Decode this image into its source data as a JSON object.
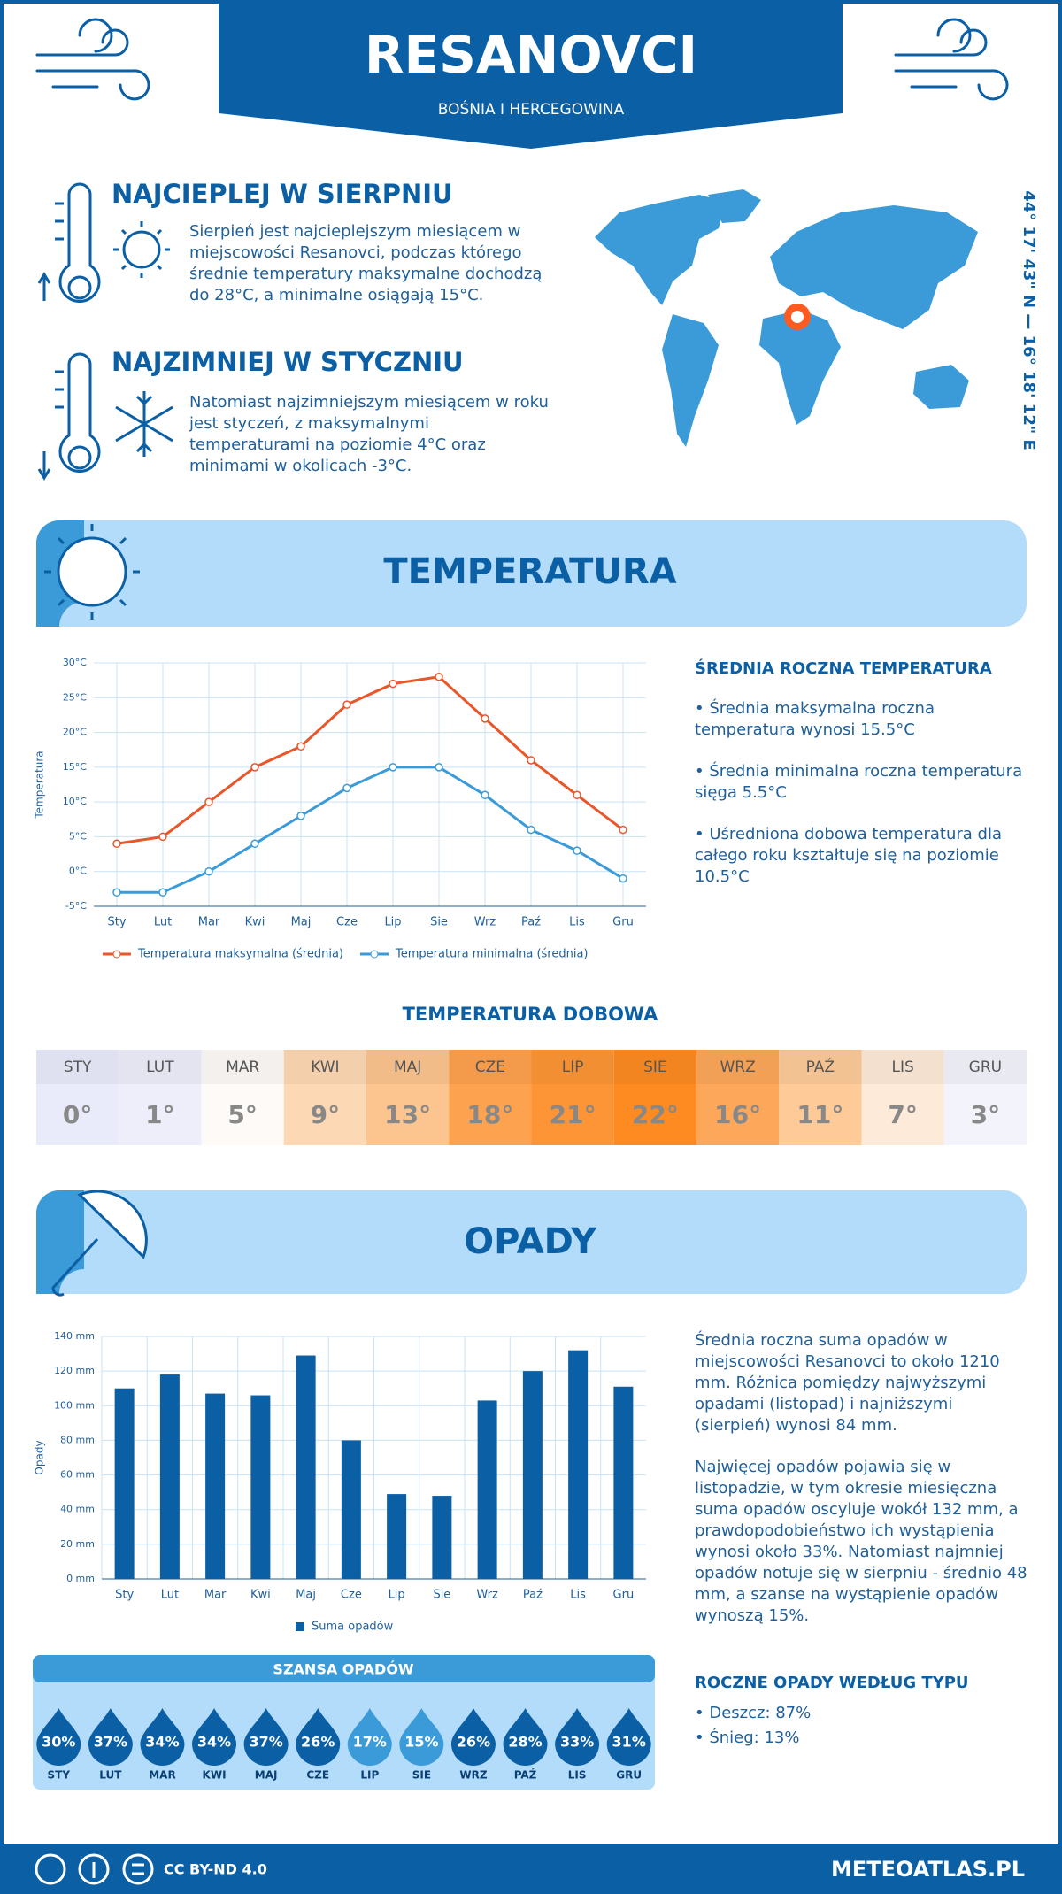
{
  "header": {
    "title": "RESANOVCI",
    "subtitle": "BOŚNIA I HERCEGOWINA"
  },
  "coordinates": "44° 17' 43\" N — 16° 18' 12\" E",
  "highlights": [
    {
      "title": "NAJCIEPLEJ W SIERPNIU",
      "text": "Sierpień jest najcieplejszym miesiącem w miejscowości Resanovci, podczas którego średnie temperatury maksymalne dochodzą do 28°C, a minimalne osiągają 15°C."
    },
    {
      "title": "NAJZIMNIEJ W STYCZNIU",
      "text": "Natomiast najzimniejszym miesiącem w roku jest styczeń, z maksymalnymi temperaturami na poziomie 4°C oraz minimami w okolicach -3°C."
    }
  ],
  "sections": {
    "temperature": "TEMPERATURA",
    "precipitation": "OPADY"
  },
  "chart_data": [
    {
      "type": "line",
      "y_label": "Temperatura",
      "categories": [
        "Sty",
        "Lut",
        "Mar",
        "Kwi",
        "Maj",
        "Cze",
        "Lip",
        "Sie",
        "Wrz",
        "Paź",
        "Lis",
        "Gru"
      ],
      "series": [
        {
          "name": "Temperatura maksymalna (średnia)",
          "color": "#e8562a",
          "values": [
            4,
            5,
            10,
            15,
            18,
            24,
            27,
            28,
            22,
            16,
            11,
            6
          ]
        },
        {
          "name": "Temperatura minimalna (średnia)",
          "color": "#3a9bd8",
          "values": [
            -3,
            -3,
            0,
            4,
            8,
            12,
            15,
            15,
            11,
            6,
            3,
            -1
          ]
        }
      ],
      "ylim": [
        -5,
        30
      ],
      "yticks": [
        {
          "value": -5,
          "label": "-5°C"
        },
        {
          "value": 0,
          "label": "0°C"
        },
        {
          "value": 5,
          "label": "5°C"
        },
        {
          "value": 10,
          "label": "10°C"
        },
        {
          "value": 15,
          "label": "15°C"
        },
        {
          "value": 20,
          "label": "20°C"
        },
        {
          "value": 25,
          "label": "25°C"
        },
        {
          "value": 30,
          "label": "30°C"
        }
      ],
      "grid": true
    },
    {
      "type": "bar",
      "y_label": "Opady",
      "categories": [
        "Sty",
        "Lut",
        "Mar",
        "Kwi",
        "Maj",
        "Cze",
        "Lip",
        "Sie",
        "Wrz",
        "Paź",
        "Lis",
        "Gru"
      ],
      "series": [
        {
          "name": "Suma opadów",
          "color": "#0b5fa5",
          "values": [
            110,
            118,
            107,
            106,
            129,
            80,
            49,
            48,
            103,
            120,
            132,
            111
          ]
        }
      ],
      "ylim": [
        0,
        140
      ],
      "yticks": [
        {
          "value": 0,
          "label": "0 mm"
        },
        {
          "value": 20,
          "label": "20 mm"
        },
        {
          "value": 40,
          "label": "40 mm"
        },
        {
          "value": 60,
          "label": "60 mm"
        },
        {
          "value": 80,
          "label": "80 mm"
        },
        {
          "value": 100,
          "label": "100 mm"
        },
        {
          "value": 120,
          "label": "120 mm"
        },
        {
          "value": 140,
          "label": "140 mm"
        }
      ],
      "grid": true
    }
  ],
  "temperature_summary": {
    "title": "ŚREDNIA ROCZNA TEMPERATURA",
    "items": [
      "• Średnia maksymalna roczna temperatura wynosi 15.5°C",
      "• Średnia minimalna roczna temperatura sięga 5.5°C",
      "• Uśredniona dobowa temperatura dla całego roku kształtuje się na poziomie 10.5°C"
    ]
  },
  "daily_temperature": {
    "title": "TEMPERATURA DOBOWA",
    "months": [
      "STY",
      "LUT",
      "MAR",
      "KWI",
      "MAJ",
      "CZE",
      "LIP",
      "SIE",
      "WRZ",
      "PAŹ",
      "LIS",
      "GRU"
    ],
    "values": [
      0,
      1,
      5,
      9,
      13,
      18,
      21,
      22,
      16,
      11,
      7,
      3
    ],
    "value_labels": [
      "0°",
      "1°",
      "5°",
      "9°",
      "13°",
      "18°",
      "21°",
      "22°",
      "16°",
      "11°",
      "7°",
      "3°"
    ],
    "colors": [
      "#e9ebfb",
      "#eeeefb",
      "#fdfaf7",
      "#fdd8b4",
      "#fcc48e",
      "#fda24e",
      "#fd9536",
      "#fd8b22",
      "#fca75a",
      "#fdca98",
      "#feead8",
      "#f3f3fb"
    ]
  },
  "precipitation_text": [
    "Średnia roczna suma opadów w miejscowości Resanovci to około 1210 mm. Różnica pomiędzy najwyższymi opadami (listopad) i najniższymi (sierpień) wynosi 84 mm.",
    "Najwięcej opadów pojawia się w listopadzie, w tym okresie miesięczna suma opadów oscyluje wokół 132 mm, a prawdopodobieństwo ich wystąpienia wynosi około 33%. Natomiast najmniej opadów notuje się w sierpniu - średnio 48 mm, a szanse na wystąpienie opadów wynoszą 15%."
  ],
  "precipitation_chance": {
    "title": "SZANSA OPADÓW",
    "months": [
      "STY",
      "LUT",
      "MAR",
      "KWI",
      "MAJ",
      "CZE",
      "LIP",
      "SIE",
      "WRZ",
      "PAŹ",
      "LIS",
      "GRU"
    ],
    "values": [
      30,
      37,
      34,
      34,
      37,
      26,
      17,
      15,
      26,
      28,
      33,
      31
    ],
    "value_labels": [
      "30%",
      "37%",
      "34%",
      "34%",
      "37%",
      "26%",
      "17%",
      "15%",
      "26%",
      "28%",
      "33%",
      "31%"
    ],
    "colors": [
      "#0b5fa5",
      "#0b5fa5",
      "#0b5fa5",
      "#0b5fa5",
      "#0b5fa5",
      "#0b5fa5",
      "#3a9bd8",
      "#3a9bd8",
      "#0b5fa5",
      "#0b5fa5",
      "#0b5fa5",
      "#0b5fa5"
    ]
  },
  "precipitation_types": {
    "title": "ROCZNE OPADY WEDŁUG TYPU",
    "items": [
      "• Deszcz: 87%",
      "• Śnieg: 13%"
    ]
  },
  "footer": {
    "license": "CC BY-ND 4.0",
    "site": "METEOATLAS.PL"
  }
}
